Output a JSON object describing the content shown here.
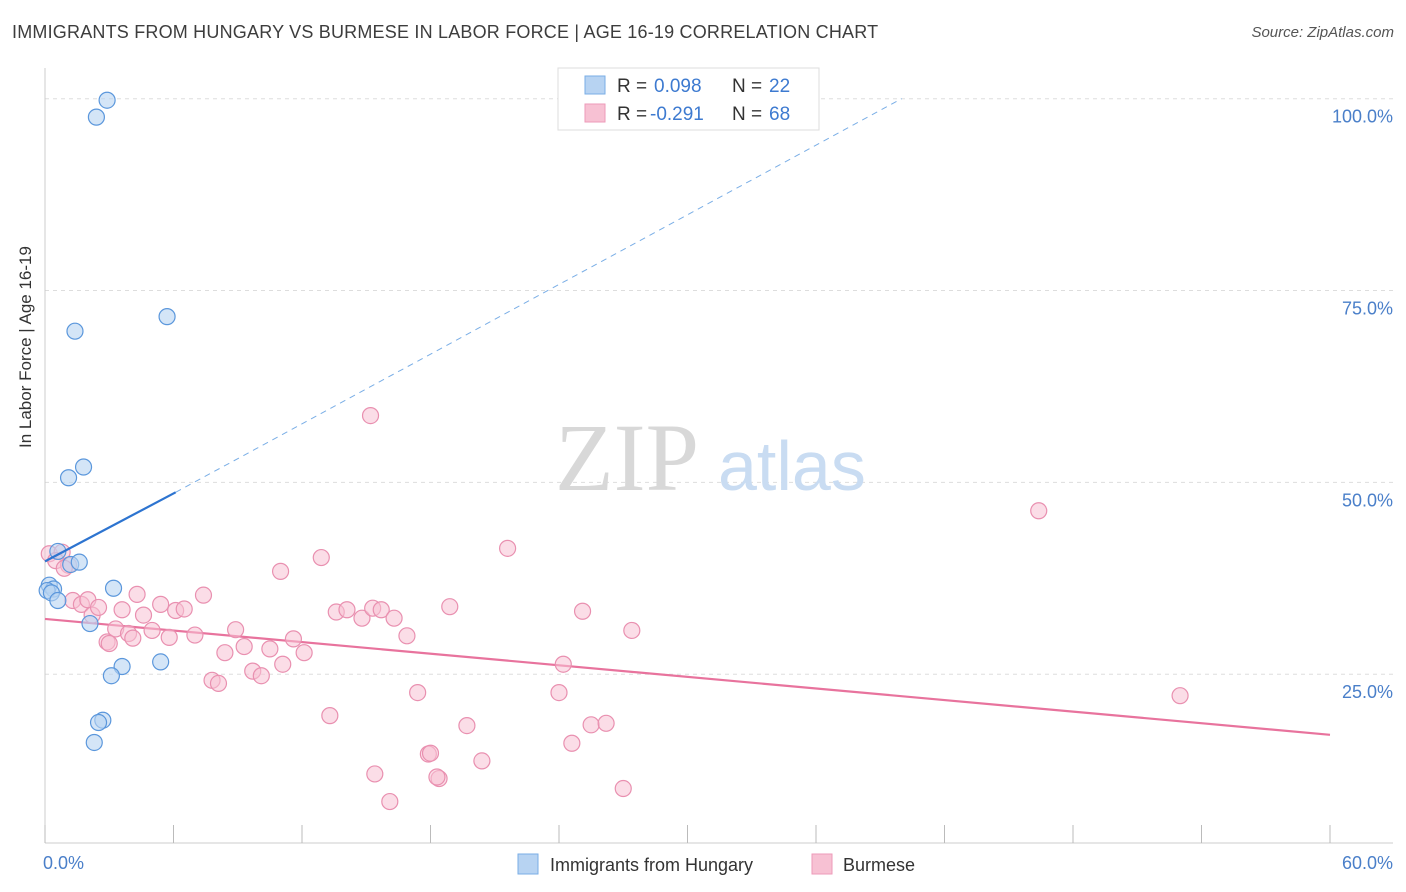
{
  "title": "IMMIGRANTS FROM HUNGARY VS BURMESE IN LABOR FORCE | AGE 16-19 CORRELATION CHART",
  "source": "Source: ZipAtlas.com",
  "watermark": {
    "zip": "ZIP",
    "atlas": "atlas"
  },
  "colors": {
    "blue": "#4a90d9",
    "blue_fill": "#b7d3f2",
    "pink": "#e8739d",
    "pink_fill": "#f7c1d3",
    "axis_text": "#4a7fc9",
    "grid": "#dddddd"
  },
  "chart_data": {
    "type": "scatter",
    "title": "IMMIGRANTS FROM HUNGARY VS BURMESE IN LABOR FORCE | AGE 16-19 CORRELATION CHART",
    "xlabel": "",
    "ylabel": "In Labor Force | Age 16-19",
    "xlim": [
      0,
      60
    ],
    "ylim": [
      3,
      104
    ],
    "x_tick_labels": {
      "min": "0.0%",
      "max": "60.0%"
    },
    "y_ticks": [
      25,
      50,
      75,
      100
    ],
    "y_tick_labels": [
      "25.0%",
      "50.0%",
      "75.0%",
      "100.0%"
    ],
    "legend": [
      {
        "r_label": "R =",
        "r_value": "0.098",
        "n_label": "N =",
        "n_value": "22"
      },
      {
        "r_label": "R =",
        "r_value": "-0.291",
        "n_label": "N =",
        "n_value": "68"
      }
    ],
    "series": [
      {
        "name": "Immigrants from Hungary",
        "color": "#4a90d9",
        "points": [
          [
            2.9,
            99.8
          ],
          [
            2.4,
            97.6
          ],
          [
            5.7,
            71.6
          ],
          [
            1.4,
            69.7
          ],
          [
            1.8,
            52.0
          ],
          [
            1.1,
            50.6
          ],
          [
            0.6,
            41.0
          ],
          [
            1.2,
            39.3
          ],
          [
            1.6,
            39.6
          ],
          [
            0.2,
            36.6
          ],
          [
            0.4,
            36.1
          ],
          [
            0.1,
            35.9
          ],
          [
            0.3,
            35.6
          ],
          [
            0.6,
            34.6
          ],
          [
            3.2,
            36.2
          ],
          [
            2.1,
            31.6
          ],
          [
            3.6,
            26.0
          ],
          [
            5.4,
            26.6
          ],
          [
            3.1,
            24.8
          ],
          [
            2.7,
            19.0
          ],
          [
            2.5,
            18.7
          ],
          [
            2.3,
            16.1
          ]
        ],
        "trend": {
          "x": [
            0,
            6.1
          ],
          "y": [
            39.7,
            48.7
          ]
        },
        "trend_extension": {
          "x": [
            6.1,
            40.0
          ],
          "y": [
            48.7,
            100.0
          ]
        }
      },
      {
        "name": "Burmese",
        "color": "#e8739d",
        "points": [
          [
            0.2,
            40.7
          ],
          [
            0.8,
            40.9
          ],
          [
            0.5,
            39.8
          ],
          [
            1.1,
            39.2
          ],
          [
            0.9,
            38.8
          ],
          [
            1.3,
            34.6
          ],
          [
            1.7,
            34.1
          ],
          [
            2.0,
            34.7
          ],
          [
            2.2,
            32.7
          ],
          [
            2.5,
            33.7
          ],
          [
            2.9,
            29.2
          ],
          [
            3.3,
            30.9
          ],
          [
            3.6,
            33.4
          ],
          [
            3.9,
            30.3
          ],
          [
            4.1,
            29.7
          ],
          [
            4.6,
            32.7
          ],
          [
            5.0,
            30.7
          ],
          [
            5.4,
            34.1
          ],
          [
            5.8,
            29.8
          ],
          [
            6.1,
            33.3
          ],
          [
            6.5,
            33.5
          ],
          [
            7.0,
            30.1
          ],
          [
            7.4,
            35.3
          ],
          [
            7.8,
            24.2
          ],
          [
            8.4,
            27.8
          ],
          [
            8.9,
            30.8
          ],
          [
            9.3,
            28.6
          ],
          [
            9.7,
            25.4
          ],
          [
            10.1,
            24.8
          ],
          [
            10.5,
            28.3
          ],
          [
            11.1,
            26.3
          ],
          [
            11.6,
            29.6
          ],
          [
            12.1,
            27.8
          ],
          [
            12.9,
            40.2
          ],
          [
            13.6,
            33.1
          ],
          [
            14.1,
            33.4
          ],
          [
            14.8,
            32.3
          ],
          [
            15.3,
            33.6
          ],
          [
            15.7,
            33.4
          ],
          [
            16.3,
            32.3
          ],
          [
            16.9,
            30.0
          ],
          [
            17.4,
            22.6
          ],
          [
            15.2,
            58.7
          ],
          [
            17.9,
            14.6
          ],
          [
            18.4,
            11.4
          ],
          [
            18.9,
            33.8
          ],
          [
            11.0,
            38.4
          ],
          [
            13.3,
            19.6
          ],
          [
            15.4,
            12.0
          ],
          [
            16.1,
            8.4
          ],
          [
            18.0,
            14.7
          ],
          [
            18.3,
            11.6
          ],
          [
            19.7,
            18.3
          ],
          [
            20.4,
            13.7
          ],
          [
            21.6,
            41.4
          ],
          [
            24.0,
            22.6
          ],
          [
            24.2,
            26.3
          ],
          [
            24.6,
            16.0
          ],
          [
            25.1,
            33.2
          ],
          [
            25.5,
            18.4
          ],
          [
            26.2,
            18.6
          ],
          [
            27.0,
            10.1
          ],
          [
            27.4,
            30.7
          ],
          [
            46.4,
            46.3
          ],
          [
            53.0,
            22.2
          ],
          [
            8.1,
            23.8
          ],
          [
            4.3,
            35.4
          ],
          [
            3.0,
            29.0
          ]
        ],
        "trend": {
          "x": [
            0,
            60
          ],
          "y": [
            32.2,
            17.1
          ]
        }
      }
    ]
  }
}
